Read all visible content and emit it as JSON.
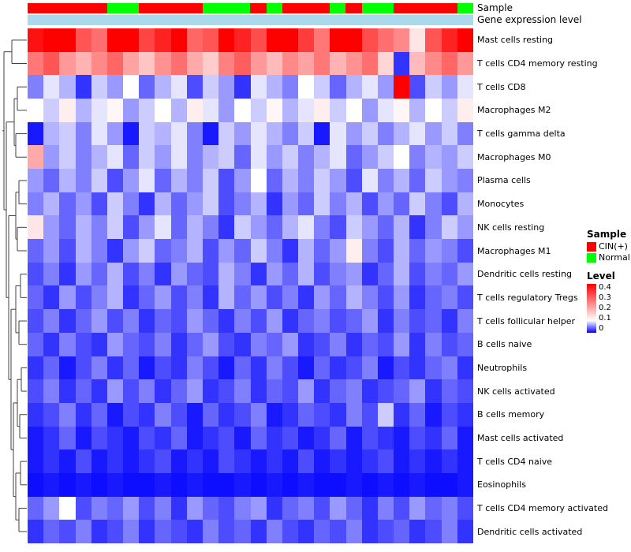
{
  "chart_data": {
    "type": "heatmap",
    "title": "",
    "rows": [
      "Mast cells resting",
      "T cells CD4 memory resting",
      "T cells CD8",
      "Macrophages M2",
      "T cells gamma delta",
      "Macrophages M0",
      "Plasma cells",
      "Monocytes",
      "NK cells resting",
      "Macrophages M1",
      "Dendritic cells resting",
      "T cells regulatory Tregs",
      "T cells follicular helper",
      "B cells naive",
      "Neutrophils",
      "NK cells activated",
      "B cells memory",
      "Mast cells activated",
      "T cells CD4 naive",
      "Eosinophils",
      "T cells CD4 memory activated",
      "Dendritic cells activated"
    ],
    "n_columns": 28,
    "column_labels_shown": false,
    "values": [
      [
        0.38,
        0.42,
        0.45,
        0.3,
        0.27,
        0.43,
        0.4,
        0.32,
        0.36,
        0.45,
        0.28,
        0.3,
        0.44,
        0.36,
        0.31,
        0.42,
        0.45,
        0.33,
        0.26,
        0.4,
        0.44,
        0.31,
        0.27,
        0.24,
        0.13,
        0.3,
        0.36,
        0.45
      ],
      [
        0.26,
        0.3,
        0.22,
        0.19,
        0.24,
        0.28,
        0.21,
        0.17,
        0.23,
        0.27,
        0.2,
        0.16,
        0.25,
        0.29,
        0.22,
        0.18,
        0.24,
        0.21,
        0.26,
        0.19,
        0.23,
        0.27,
        0.15,
        0.02,
        0.18,
        0.24,
        0.28,
        0.22
      ],
      [
        0.05,
        0.09,
        0.07,
        0.02,
        0.08,
        0.06,
        0.1,
        0.04,
        0.07,
        0.09,
        0.03,
        0.08,
        0.06,
        0.02,
        0.09,
        0.07,
        0.05,
        0.1,
        0.08,
        0.04,
        0.07,
        0.09,
        0.06,
        0.4,
        0.03,
        0.08,
        0.06,
        0.09
      ],
      [
        0.1,
        0.08,
        0.12,
        0.07,
        0.09,
        0.11,
        0.06,
        0.08,
        0.1,
        0.07,
        0.12,
        0.09,
        0.06,
        0.1,
        0.08,
        0.11,
        0.07,
        0.09,
        0.12,
        0.08,
        0.1,
        0.06,
        0.09,
        0.11,
        0.07,
        0.1,
        0.08,
        0.12
      ],
      [
        0.01,
        0.07,
        0.08,
        0.05,
        0.09,
        0.06,
        0.01,
        0.08,
        0.07,
        0.09,
        0.05,
        0.01,
        0.08,
        0.06,
        0.09,
        0.07,
        0.05,
        0.08,
        0.01,
        0.09,
        0.06,
        0.08,
        0.05,
        0.07,
        0.09,
        0.06,
        0.08,
        0.05
      ],
      [
        0.2,
        0.06,
        0.08,
        0.05,
        0.07,
        0.09,
        0.04,
        0.08,
        0.06,
        0.09,
        0.05,
        0.07,
        0.08,
        0.04,
        0.09,
        0.06,
        0.08,
        0.05,
        0.07,
        0.09,
        0.04,
        0.06,
        0.08,
        0.1,
        0.05,
        0.07,
        0.06,
        0.08
      ],
      [
        0.06,
        0.04,
        0.07,
        0.05,
        0.08,
        0.03,
        0.06,
        0.09,
        0.04,
        0.07,
        0.05,
        0.08,
        0.03,
        0.06,
        0.1,
        0.04,
        0.07,
        0.05,
        0.08,
        0.06,
        0.03,
        0.09,
        0.05,
        0.07,
        0.04,
        0.08,
        0.06,
        0.05
      ],
      [
        0.05,
        0.07,
        0.04,
        0.06,
        0.03,
        0.08,
        0.05,
        0.02,
        0.07,
        0.04,
        0.06,
        0.08,
        0.03,
        0.05,
        0.07,
        0.02,
        0.06,
        0.04,
        0.08,
        0.05,
        0.07,
        0.03,
        0.06,
        0.04,
        0.08,
        0.05,
        0.03,
        0.07
      ],
      [
        0.13,
        0.06,
        0.04,
        0.07,
        0.05,
        0.08,
        0.03,
        0.06,
        0.09,
        0.04,
        0.07,
        0.05,
        0.02,
        0.08,
        0.06,
        0.04,
        0.07,
        0.09,
        0.05,
        0.03,
        0.08,
        0.06,
        0.04,
        0.07,
        0.02,
        0.05,
        0.08,
        0.06
      ],
      [
        0.04,
        0.06,
        0.03,
        0.07,
        0.05,
        0.02,
        0.06,
        0.08,
        0.04,
        0.05,
        0.07,
        0.03,
        0.06,
        0.04,
        0.08,
        0.05,
        0.02,
        0.07,
        0.04,
        0.06,
        0.12,
        0.05,
        0.03,
        0.07,
        0.04,
        0.06,
        0.05,
        0.03
      ],
      [
        0.03,
        0.05,
        0.02,
        0.06,
        0.04,
        0.07,
        0.03,
        0.05,
        0.02,
        0.06,
        0.04,
        0.03,
        0.07,
        0.05,
        0.02,
        0.06,
        0.04,
        0.07,
        0.03,
        0.05,
        0.06,
        0.02,
        0.04,
        0.07,
        0.03,
        0.05,
        0.04,
        0.06
      ],
      [
        0.04,
        0.02,
        0.06,
        0.03,
        0.05,
        0.07,
        0.02,
        0.04,
        0.06,
        0.03,
        0.05,
        0.02,
        0.07,
        0.04,
        0.06,
        0.03,
        0.05,
        0.02,
        0.06,
        0.04,
        0.07,
        0.05,
        0.03,
        0.06,
        0.02,
        0.04,
        0.05,
        0.03
      ],
      [
        0.03,
        0.05,
        0.02,
        0.04,
        0.06,
        0.03,
        0.05,
        0.02,
        0.04,
        0.03,
        0.06,
        0.04,
        0.02,
        0.05,
        0.03,
        0.06,
        0.02,
        0.04,
        0.05,
        0.03,
        0.04,
        0.06,
        0.02,
        0.05,
        0.03,
        0.04,
        0.02,
        0.05
      ],
      [
        0.04,
        0.02,
        0.05,
        0.03,
        0.02,
        0.06,
        0.04,
        0.03,
        0.05,
        0.02,
        0.04,
        0.06,
        0.03,
        0.02,
        0.05,
        0.04,
        0.06,
        0.02,
        0.03,
        0.05,
        0.02,
        0.04,
        0.03,
        0.06,
        0.02,
        0.05,
        0.03,
        0.04
      ],
      [
        0.02,
        0.04,
        0.01,
        0.03,
        0.05,
        0.02,
        0.04,
        0.01,
        0.03,
        0.02,
        0.05,
        0.03,
        0.01,
        0.04,
        0.02,
        0.05,
        0.03,
        0.01,
        0.04,
        0.02,
        0.03,
        0.05,
        0.01,
        0.03,
        0.02,
        0.04,
        0.05,
        0.02
      ],
      [
        0.03,
        0.05,
        0.02,
        0.04,
        0.02,
        0.06,
        0.03,
        0.05,
        0.02,
        0.04,
        0.06,
        0.02,
        0.03,
        0.05,
        0.02,
        0.04,
        0.03,
        0.06,
        0.02,
        0.04,
        0.05,
        0.02,
        0.03,
        0.04,
        0.06,
        0.02,
        0.04,
        0.03
      ],
      [
        0.02,
        0.03,
        0.05,
        0.02,
        0.04,
        0.01,
        0.03,
        0.02,
        0.05,
        0.03,
        0.01,
        0.04,
        0.02,
        0.03,
        0.05,
        0.01,
        0.02,
        0.04,
        0.03,
        0.02,
        0.05,
        0.03,
        0.08,
        0.02,
        0.04,
        0.01,
        0.03,
        0.02
      ],
      [
        0.01,
        0.02,
        0.04,
        0.01,
        0.03,
        0.02,
        0.01,
        0.03,
        0.02,
        0.04,
        0.01,
        0.02,
        0.03,
        0.01,
        0.04,
        0.02,
        0.03,
        0.01,
        0.02,
        0.04,
        0.01,
        0.03,
        0.02,
        0.01,
        0.03,
        0.02,
        0.04,
        0.01
      ],
      [
        0.01,
        0.02,
        0.01,
        0.03,
        0.01,
        0.02,
        0.01,
        0.02,
        0.03,
        0.01,
        0.02,
        0.01,
        0.03,
        0.02,
        0.01,
        0.02,
        0.01,
        0.03,
        0.01,
        0.02,
        0.01,
        0.02,
        0.03,
        0.01,
        0.02,
        0.01,
        0.02,
        0.01
      ],
      [
        0.005,
        0.01,
        0.005,
        0.01,
        0.005,
        0.01,
        0.005,
        0.005,
        0.01,
        0.005,
        0.01,
        0.005,
        0.005,
        0.01,
        0.005,
        0.01,
        0.005,
        0.01,
        0.005,
        0.005,
        0.01,
        0.005,
        0.01,
        0.005,
        0.01,
        0.005,
        0.005,
        0.01
      ],
      [
        0.04,
        0.06,
        0.1,
        0.03,
        0.05,
        0.04,
        0.06,
        0.03,
        0.05,
        0.02,
        0.06,
        0.04,
        0.03,
        0.05,
        0.06,
        0.02,
        0.04,
        0.05,
        0.03,
        0.06,
        0.04,
        0.02,
        0.05,
        0.03,
        0.06,
        0.04,
        0.05,
        0.03
      ],
      [
        0.02,
        0.04,
        0.03,
        0.05,
        0.02,
        0.03,
        0.05,
        0.02,
        0.04,
        0.03,
        0.02,
        0.05,
        0.03,
        0.04,
        0.02,
        0.05,
        0.03,
        0.02,
        0.04,
        0.03,
        0.05,
        0.02,
        0.03,
        0.04,
        0.02,
        0.03,
        0.05,
        0.02
      ]
    ],
    "colorscale": {
      "min": 0,
      "mid": 0.1,
      "max": 0.4,
      "min_color": "#0000FF",
      "mid_color": "#FFFFFF",
      "max_color": "#FF0000"
    },
    "column_annotations": {
      "sample": {
        "label": "Sample",
        "values": [
          "CIN(+)",
          "CIN(+)",
          "CIN(+)",
          "CIN(+)",
          "CIN(+)",
          "Normal",
          "Normal",
          "CIN(+)",
          "CIN(+)",
          "CIN(+)",
          "CIN(+)",
          "Normal",
          "Normal",
          "Normal",
          "CIN(+)",
          "Normal",
          "CIN(+)",
          "CIN(+)",
          "CIN(+)",
          "Normal",
          "CIN(+)",
          "Normal",
          "Normal",
          "CIN(+)",
          "CIN(+)",
          "CIN(+)",
          "CIN(+)",
          "Normal"
        ],
        "colors": {
          "CIN(+)": "#FF0000",
          "Normal": "#00FF00"
        }
      },
      "gene_expression": {
        "label": "Gene expression level",
        "color": "#A8D9EC"
      }
    },
    "legends": {
      "sample": {
        "title": "Sample",
        "entries": [
          {
            "label": "CIN(+)",
            "color": "#FF0000"
          },
          {
            "label": "Normal",
            "color": "#00FF00"
          }
        ]
      },
      "level": {
        "title": "Level",
        "ticks": [
          "0.4",
          "0.3",
          "0.2",
          "0.1",
          "0"
        ]
      }
    },
    "dendrogram_position": "left",
    "legend_position": "right"
  }
}
